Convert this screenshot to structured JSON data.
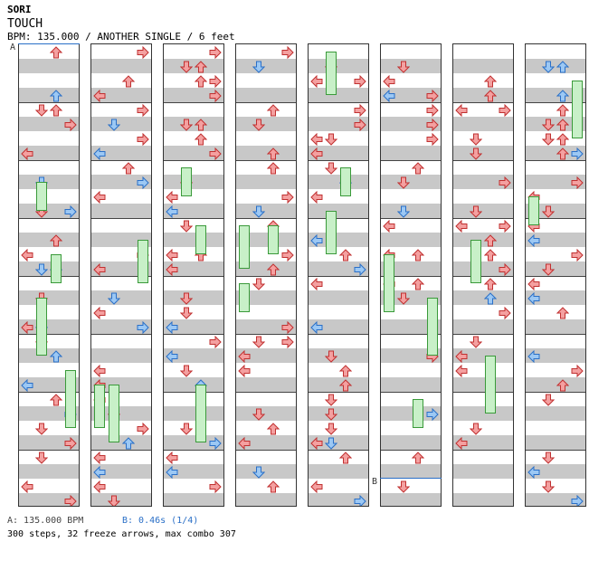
{
  "song": {
    "artist": "SORI",
    "title": "TOUCH",
    "meta": "BPM: 135.000 / ANOTHER SINGLE / 6 feet"
  },
  "markers": {
    "a": "A",
    "b": "B"
  },
  "footer": {
    "bpm_a": "A: 135.000 BPM",
    "bpm_b": "B: 0.46s (1/4)",
    "stats": "300 steps, 32 freeze arrows, max combo 307"
  },
  "colors": {
    "red_arrow": "#f4a0a0",
    "red_stroke": "#c03030",
    "blue_arrow": "#9cc8f4",
    "blue_stroke": "#2a6fc7",
    "pink_arrow": "#f4b8ec",
    "freeze_fill": "#c8f0c8",
    "freeze_stroke": "#3a9a3a",
    "band": "#c8c8c8"
  },
  "chart": {
    "columns": 8,
    "measures_per_column": 8
  }
}
